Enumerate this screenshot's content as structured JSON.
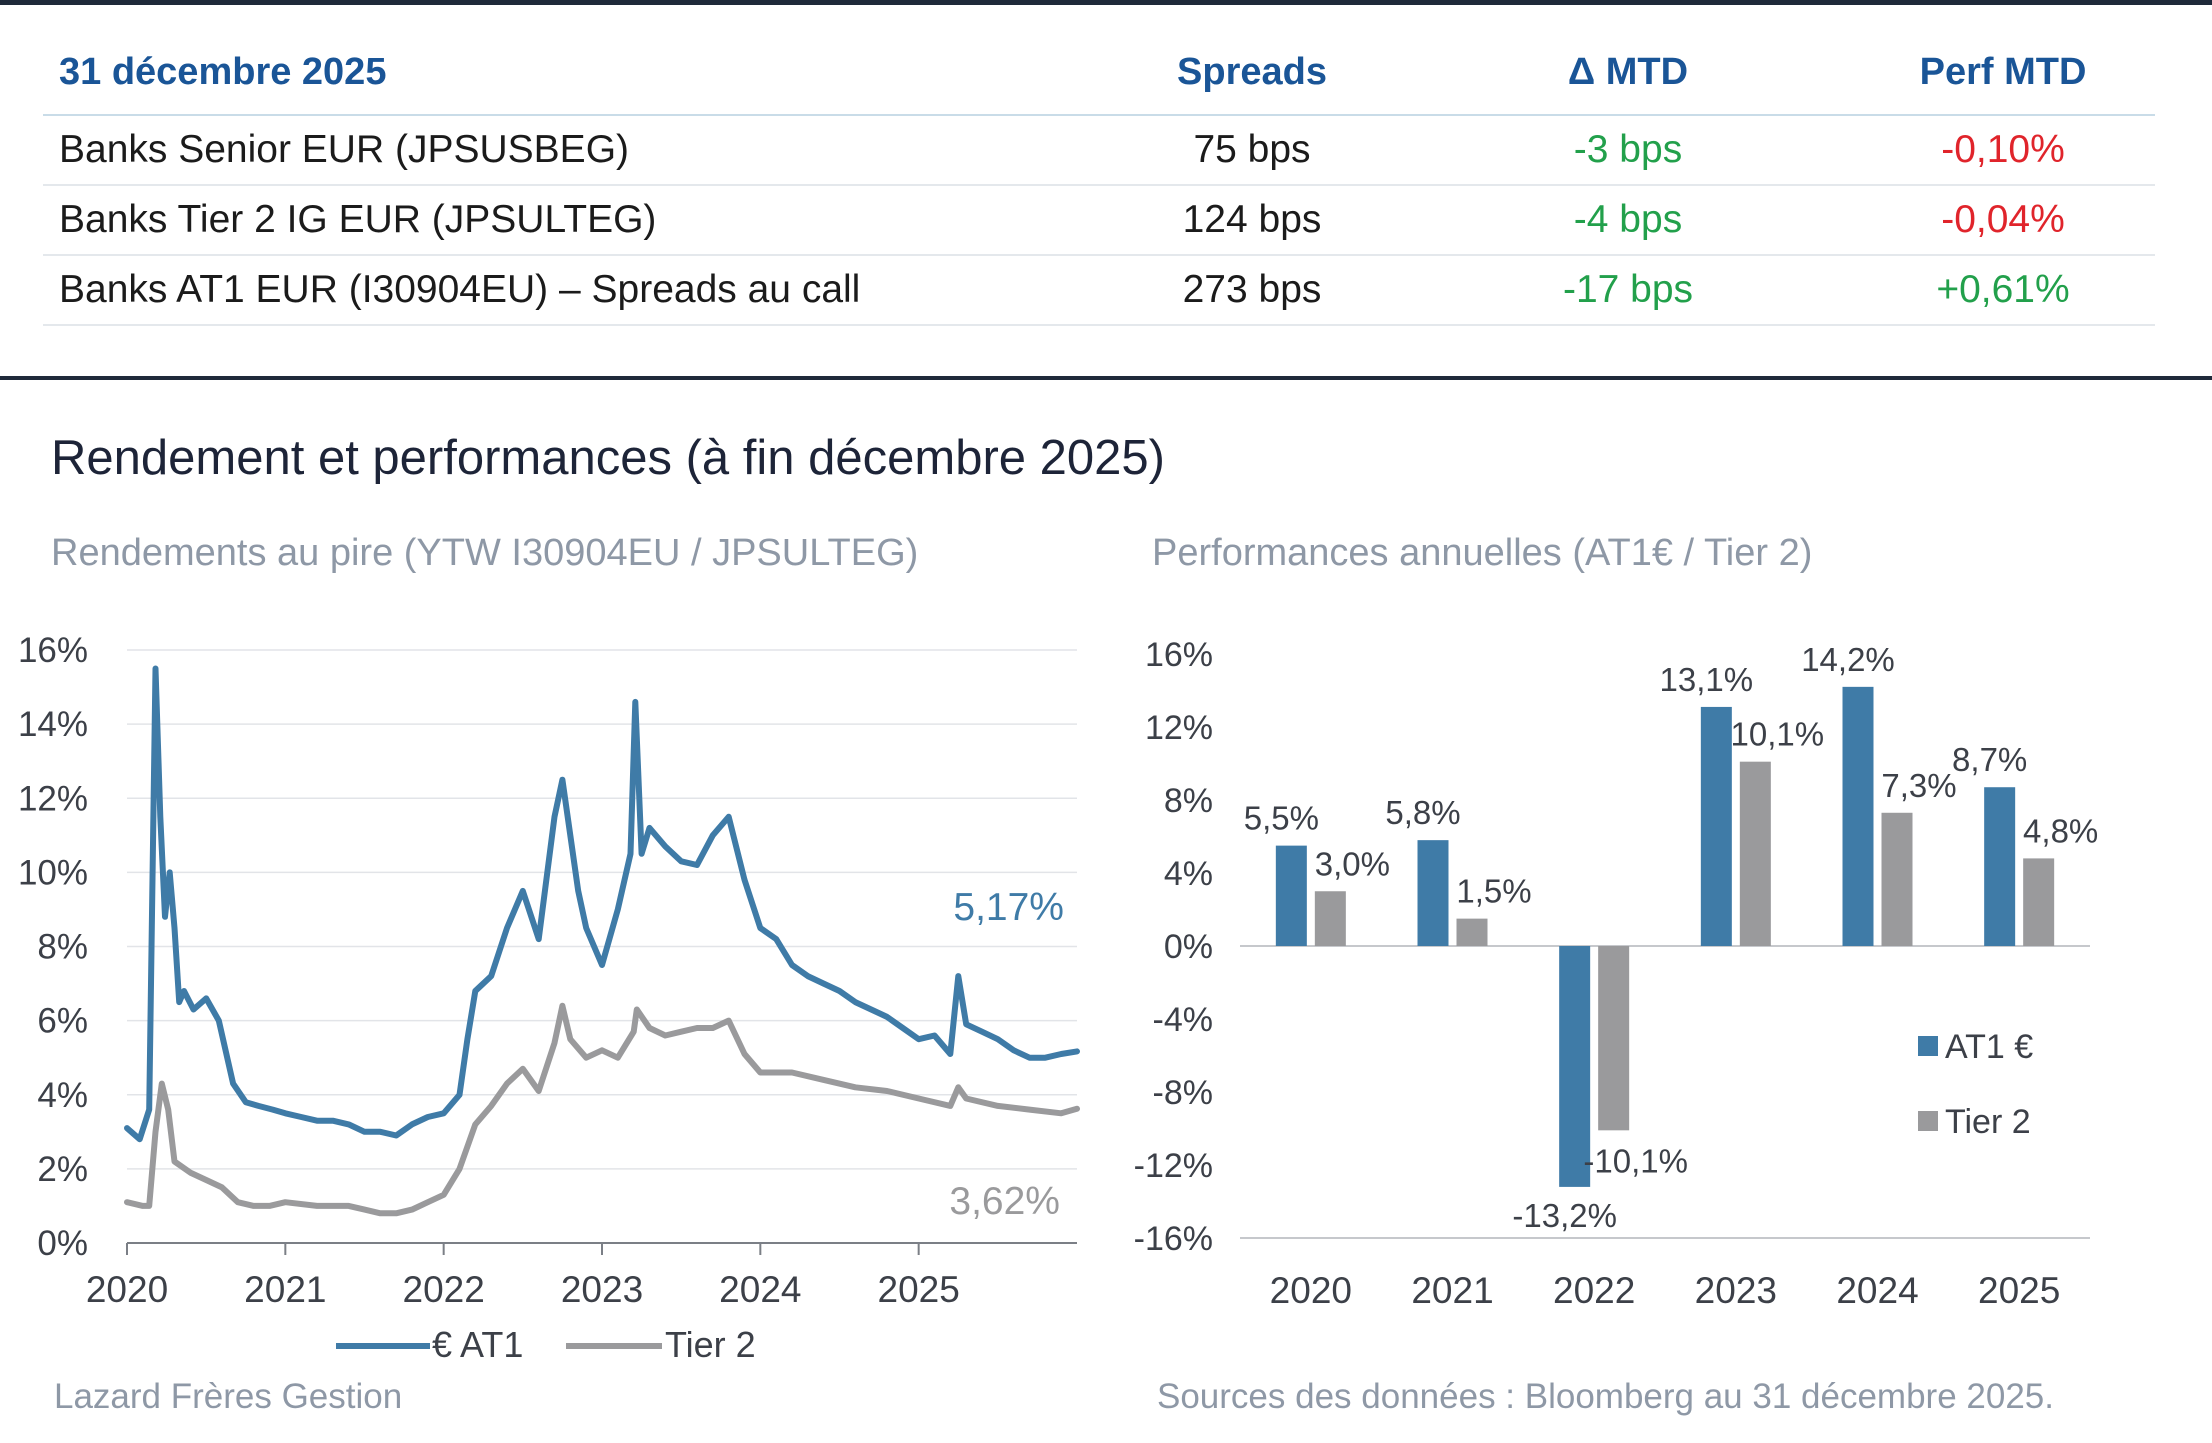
{
  "table": {
    "header": {
      "date": "31 décembre 2025",
      "spreads": "Spreads",
      "delta": "Δ MTD",
      "perf": "Perf MTD"
    },
    "rows": [
      {
        "name": "Banks Senior EUR (JPSUSBEG)",
        "spread": "75 bps",
        "delta": "-3 bps",
        "perf": "-0,10%"
      },
      {
        "name": "Banks Tier 2 IG EUR (JPSULTEG)",
        "spread": "124 bps",
        "delta": "-4 bps",
        "perf": "-0,04%"
      },
      {
        "name": "Banks AT1 EUR (I30904EU) – Spreads au call",
        "spread": "273 bps",
        "delta": "-17 bps",
        "perf": "+0,61%"
      }
    ]
  },
  "section_title": "Rendement et performances (à fin décembre 2025)",
  "footer": {
    "left": "Lazard Frères Gestion",
    "right": "Sources des données : Bloomberg au 31 décembre 2025."
  },
  "colors": {
    "at1": "#3f7ba7",
    "tier2": "#9a9a9c",
    "header_blue": "#1a5597",
    "negative": "#e0242b",
    "positive": "#22a04b"
  },
  "chart_data": [
    {
      "type": "line",
      "title": "Rendements au pire (YTW I30904EU / JPSULTEG)",
      "x_ticks": [
        "2020",
        "2021",
        "2022",
        "2023",
        "2024",
        "2025"
      ],
      "y_ticks": [
        "16%",
        "14%",
        "12%",
        "10%",
        "8%",
        "6%",
        "4%",
        "2%",
        "0%"
      ],
      "ylim": [
        0,
        16
      ],
      "xlim": [
        2020.0,
        2026.0
      ],
      "grid": true,
      "legend_position": "bottom",
      "series": [
        {
          "name": "€ AT1",
          "end_label": "5,17%",
          "x": [
            2020.0,
            2020.08,
            2020.14,
            2020.18,
            2020.21,
            2020.24,
            2020.27,
            2020.3,
            2020.33,
            2020.36,
            2020.42,
            2020.5,
            2020.58,
            2020.67,
            2020.75,
            2020.83,
            2020.92,
            2021.0,
            2021.1,
            2021.2,
            2021.3,
            2021.4,
            2021.5,
            2021.6,
            2021.7,
            2021.8,
            2021.9,
            2022.0,
            2022.1,
            2022.15,
            2022.2,
            2022.3,
            2022.4,
            2022.5,
            2022.6,
            2022.7,
            2022.75,
            2022.8,
            2022.85,
            2022.9,
            2023.0,
            2023.1,
            2023.18,
            2023.21,
            2023.25,
            2023.3,
            2023.4,
            2023.5,
            2023.6,
            2023.7,
            2023.8,
            2023.9,
            2024.0,
            2024.1,
            2024.2,
            2024.3,
            2024.4,
            2024.5,
            2024.6,
            2024.7,
            2024.8,
            2024.9,
            2025.0,
            2025.1,
            2025.2,
            2025.25,
            2025.3,
            2025.4,
            2025.5,
            2025.6,
            2025.7,
            2025.8,
            2025.9,
            2026.0
          ],
          "y": [
            3.1,
            2.8,
            3.6,
            15.5,
            11.5,
            8.8,
            10.0,
            8.5,
            6.5,
            6.8,
            6.3,
            6.6,
            6.0,
            4.3,
            3.8,
            3.7,
            3.6,
            3.5,
            3.4,
            3.3,
            3.3,
            3.2,
            3.0,
            3.0,
            2.9,
            3.2,
            3.4,
            3.5,
            4.0,
            5.5,
            6.8,
            7.2,
            8.5,
            9.5,
            8.2,
            11.5,
            12.5,
            11.0,
            9.5,
            8.5,
            7.5,
            9.0,
            10.5,
            14.6,
            10.5,
            11.2,
            10.7,
            10.3,
            10.2,
            11.0,
            11.5,
            9.8,
            8.5,
            8.2,
            7.5,
            7.2,
            7.0,
            6.8,
            6.5,
            6.3,
            6.1,
            5.8,
            5.5,
            5.6,
            5.1,
            7.2,
            5.9,
            5.7,
            5.5,
            5.2,
            5.0,
            5.0,
            5.1,
            5.17
          ]
        },
        {
          "name": "Tier 2",
          "end_label": "3,62%",
          "x": [
            2020.0,
            2020.1,
            2020.14,
            2020.18,
            2020.22,
            2020.26,
            2020.3,
            2020.4,
            2020.5,
            2020.6,
            2020.7,
            2020.8,
            2020.9,
            2021.0,
            2021.2,
            2021.4,
            2021.5,
            2021.6,
            2021.7,
            2021.8,
            2021.9,
            2022.0,
            2022.1,
            2022.2,
            2022.3,
            2022.4,
            2022.5,
            2022.6,
            2022.7,
            2022.75,
            2022.8,
            2022.9,
            2023.0,
            2023.1,
            2023.2,
            2023.22,
            2023.3,
            2023.4,
            2023.5,
            2023.6,
            2023.7,
            2023.8,
            2023.9,
            2024.0,
            2024.2,
            2024.4,
            2024.6,
            2024.8,
            2025.0,
            2025.2,
            2025.25,
            2025.3,
            2025.5,
            2025.7,
            2025.9,
            2026.0
          ],
          "y": [
            1.1,
            1.0,
            1.0,
            3.0,
            4.3,
            3.6,
            2.2,
            1.9,
            1.7,
            1.5,
            1.1,
            1.0,
            1.0,
            1.1,
            1.0,
            1.0,
            0.9,
            0.8,
            0.8,
            0.9,
            1.1,
            1.3,
            2.0,
            3.2,
            3.7,
            4.3,
            4.7,
            4.1,
            5.4,
            6.4,
            5.5,
            5.0,
            5.2,
            5.0,
            5.7,
            6.3,
            5.8,
            5.6,
            5.7,
            5.8,
            5.8,
            6.0,
            5.1,
            4.6,
            4.6,
            4.4,
            4.2,
            4.1,
            3.9,
            3.7,
            4.2,
            3.9,
            3.7,
            3.6,
            3.5,
            3.62
          ]
        }
      ]
    },
    {
      "type": "bar",
      "title": "Performances annuelles (AT1€ / Tier 2)",
      "categories": [
        "2020",
        "2021",
        "2022",
        "2023",
        "2024",
        "2025"
      ],
      "y_ticks": [
        "16%",
        "12%",
        "8%",
        "4%",
        "0%",
        "-4%",
        "-8%",
        "-12%",
        "-16%"
      ],
      "ylim": [
        -16,
        16
      ],
      "grid": false,
      "legend_position": "right",
      "series": [
        {
          "name": "AT1 €",
          "values": [
            5.5,
            5.8,
            -13.2,
            13.1,
            14.2,
            8.7
          ],
          "labels": [
            "5,5%",
            "5,8%",
            "-13,2%",
            "13,1%",
            "14,2%",
            "8,7%"
          ]
        },
        {
          "name": "Tier 2",
          "values": [
            3.0,
            1.5,
            -10.1,
            10.1,
            7.3,
            4.8
          ],
          "labels": [
            "3,0%",
            "1,5%",
            "-10,1%",
            "10,1%",
            "7,3%",
            "4,8%"
          ]
        }
      ]
    }
  ]
}
